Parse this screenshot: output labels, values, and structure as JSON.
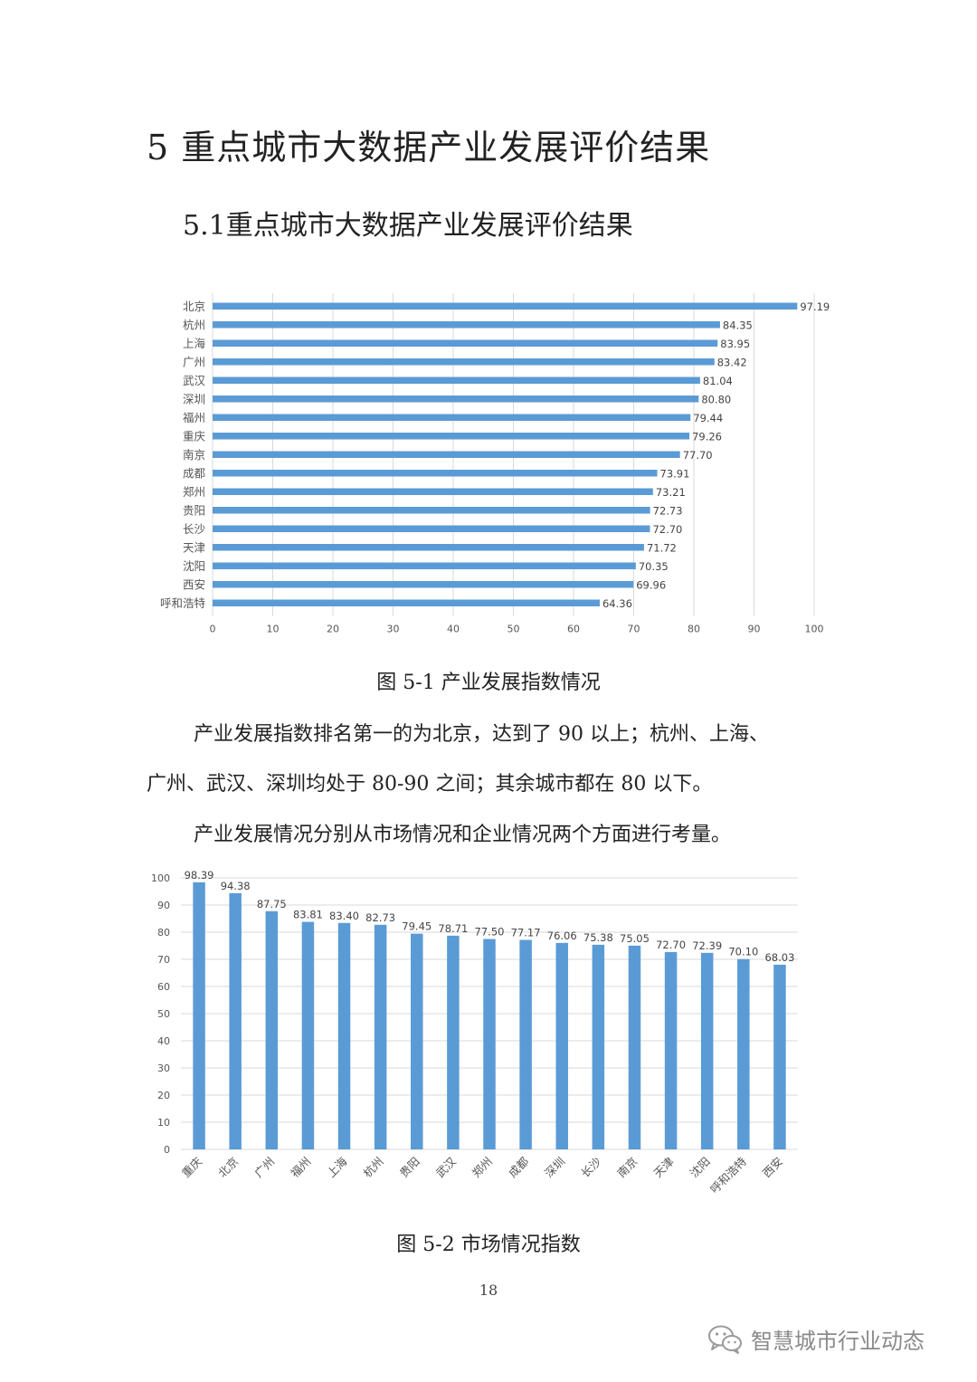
{
  "document": {
    "heading": "5 重点城市大数据产业发展评价结果",
    "subheading": "5.1重点城市大数据产业发展评价结果",
    "caption_fig1": "图 5-1 产业发展指数情况",
    "paragraphs": [
      "产业发展指数排名第一的为北京，达到了 90 以上；杭州、上海、",
      "广州、武汉、深圳均处于 80-90 之间；其余城市都在 80 以下。",
      "产业发展情况分别从市场情况和企业情况两个方面进行考量。"
    ],
    "caption_fig2": "图 5-2 市场情况指数",
    "page_number": "18",
    "watermark": "智慧城市行业动态",
    "watermark_icon": "wechat-icon"
  },
  "colors": {
    "bar": "#5b9bd5",
    "grid": "#d9d9d9",
    "text": "#222222"
  },
  "chart_data": [
    {
      "type": "bar",
      "orientation": "horizontal",
      "categories": [
        "北京",
        "杭州",
        "上海",
        "广州",
        "武汉",
        "深圳",
        "福州",
        "重庆",
        "南京",
        "成都",
        "郑州",
        "贵阳",
        "长沙",
        "天津",
        "沈阳",
        "西安",
        "呼和浩特"
      ],
      "values": [
        97.19,
        84.35,
        83.95,
        83.42,
        81.04,
        80.8,
        79.44,
        79.26,
        77.7,
        73.91,
        73.21,
        72.73,
        72.7,
        71.72,
        70.35,
        69.96,
        64.36
      ],
      "value_labels": [
        "97.19",
        "84.35",
        "83.95",
        "83.42",
        "81.04",
        "80.80",
        "79.44",
        "79.26",
        "77.70",
        "73.91",
        "73.21",
        "72.73",
        "72.70",
        "71.72",
        "70.35",
        "69.96",
        "64.36"
      ],
      "ticks": [
        "0",
        "10",
        "20",
        "30",
        "40",
        "50",
        "60",
        "70",
        "80",
        "90",
        "100"
      ],
      "xlim": [
        0,
        100
      ],
      "grid": true
    },
    {
      "type": "bar",
      "orientation": "vertical",
      "categories": [
        "重庆",
        "北京",
        "广州",
        "福州",
        "上海",
        "杭州",
        "贵阳",
        "武汉",
        "郑州",
        "成都",
        "深圳",
        "长沙",
        "南京",
        "天津",
        "沈阳",
        "呼和浩特",
        "西安"
      ],
      "values": [
        98.39,
        94.38,
        87.75,
        83.81,
        83.4,
        82.73,
        79.45,
        78.71,
        77.5,
        77.17,
        76.06,
        75.38,
        75.05,
        72.7,
        72.39,
        70.1,
        68.03
      ],
      "value_labels": [
        "98.39",
        "94.38",
        "87.75",
        "83.81",
        "83.40",
        "82.73",
        "79.45",
        "78.71",
        "77.50",
        "77.17",
        "76.06",
        "75.38",
        "75.05",
        "72.70",
        "72.39",
        "70.10",
        "68.03"
      ],
      "ticks": [
        "0",
        "10",
        "20",
        "30",
        "40",
        "50",
        "60",
        "70",
        "80",
        "90",
        "100"
      ],
      "ylim": [
        0,
        100
      ],
      "grid": true
    }
  ]
}
